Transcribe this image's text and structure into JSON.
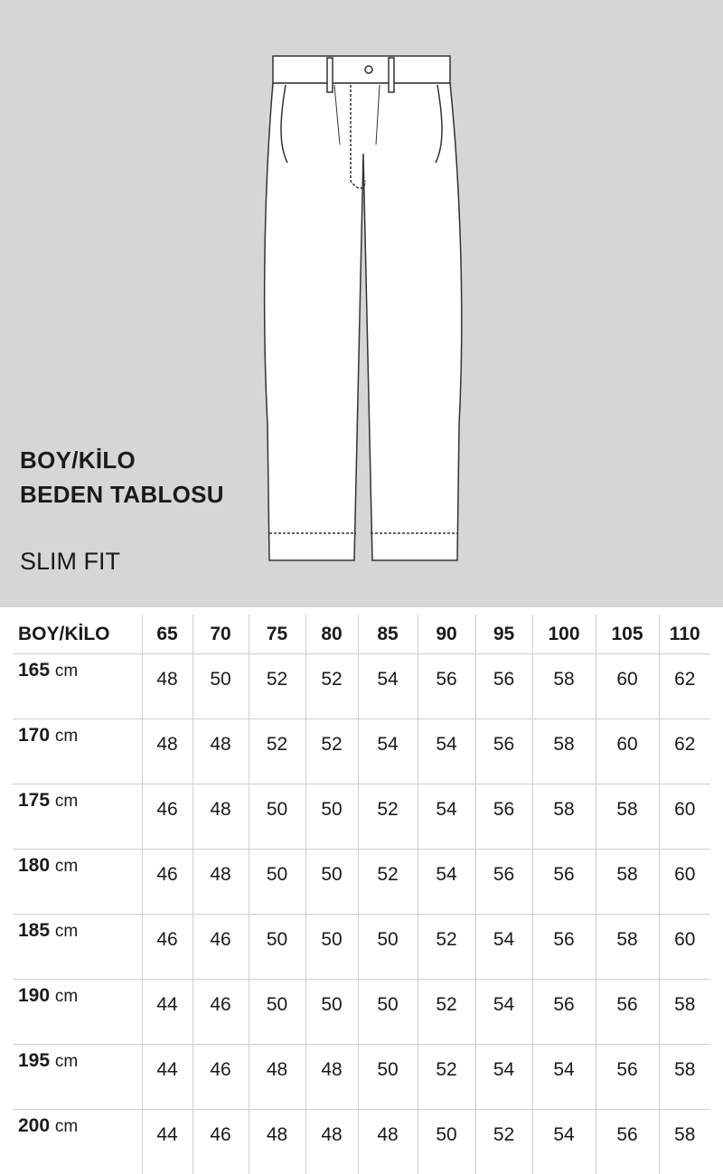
{
  "title_line1": "BOY/KİLO",
  "title_line2": "BEDEN TABLOSU",
  "fit": "SLIM FIT",
  "illustration": "trousers-technical-drawing",
  "table": {
    "corner": "BOY/KİLO",
    "weights": [
      "65",
      "70",
      "75",
      "80",
      "85",
      "90",
      "95",
      "100",
      "105",
      "110"
    ],
    "rows": [
      {
        "height": "165",
        "unit": "cm",
        "sizes": [
          "48",
          "50",
          "52",
          "52",
          "54",
          "56",
          "56",
          "58",
          "60",
          "62"
        ]
      },
      {
        "height": "170",
        "unit": "cm",
        "sizes": [
          "48",
          "48",
          "52",
          "52",
          "54",
          "54",
          "56",
          "58",
          "60",
          "62"
        ]
      },
      {
        "height": "175",
        "unit": "cm",
        "sizes": [
          "46",
          "48",
          "50",
          "50",
          "52",
          "54",
          "56",
          "58",
          "58",
          "60"
        ]
      },
      {
        "height": "180",
        "unit": "cm",
        "sizes": [
          "46",
          "48",
          "50",
          "50",
          "52",
          "54",
          "56",
          "56",
          "58",
          "60"
        ]
      },
      {
        "height": "185",
        "unit": "cm",
        "sizes": [
          "46",
          "46",
          "50",
          "50",
          "50",
          "52",
          "54",
          "56",
          "58",
          "60"
        ]
      },
      {
        "height": "190",
        "unit": "cm",
        "sizes": [
          "44",
          "46",
          "50",
          "50",
          "50",
          "52",
          "54",
          "56",
          "56",
          "58"
        ]
      },
      {
        "height": "195",
        "unit": "cm",
        "sizes": [
          "44",
          "46",
          "48",
          "48",
          "50",
          "52",
          "54",
          "54",
          "56",
          "58"
        ]
      },
      {
        "height": "200",
        "unit": "cm",
        "sizes": [
          "44",
          "46",
          "48",
          "48",
          "48",
          "50",
          "52",
          "54",
          "56",
          "58"
        ]
      }
    ]
  }
}
